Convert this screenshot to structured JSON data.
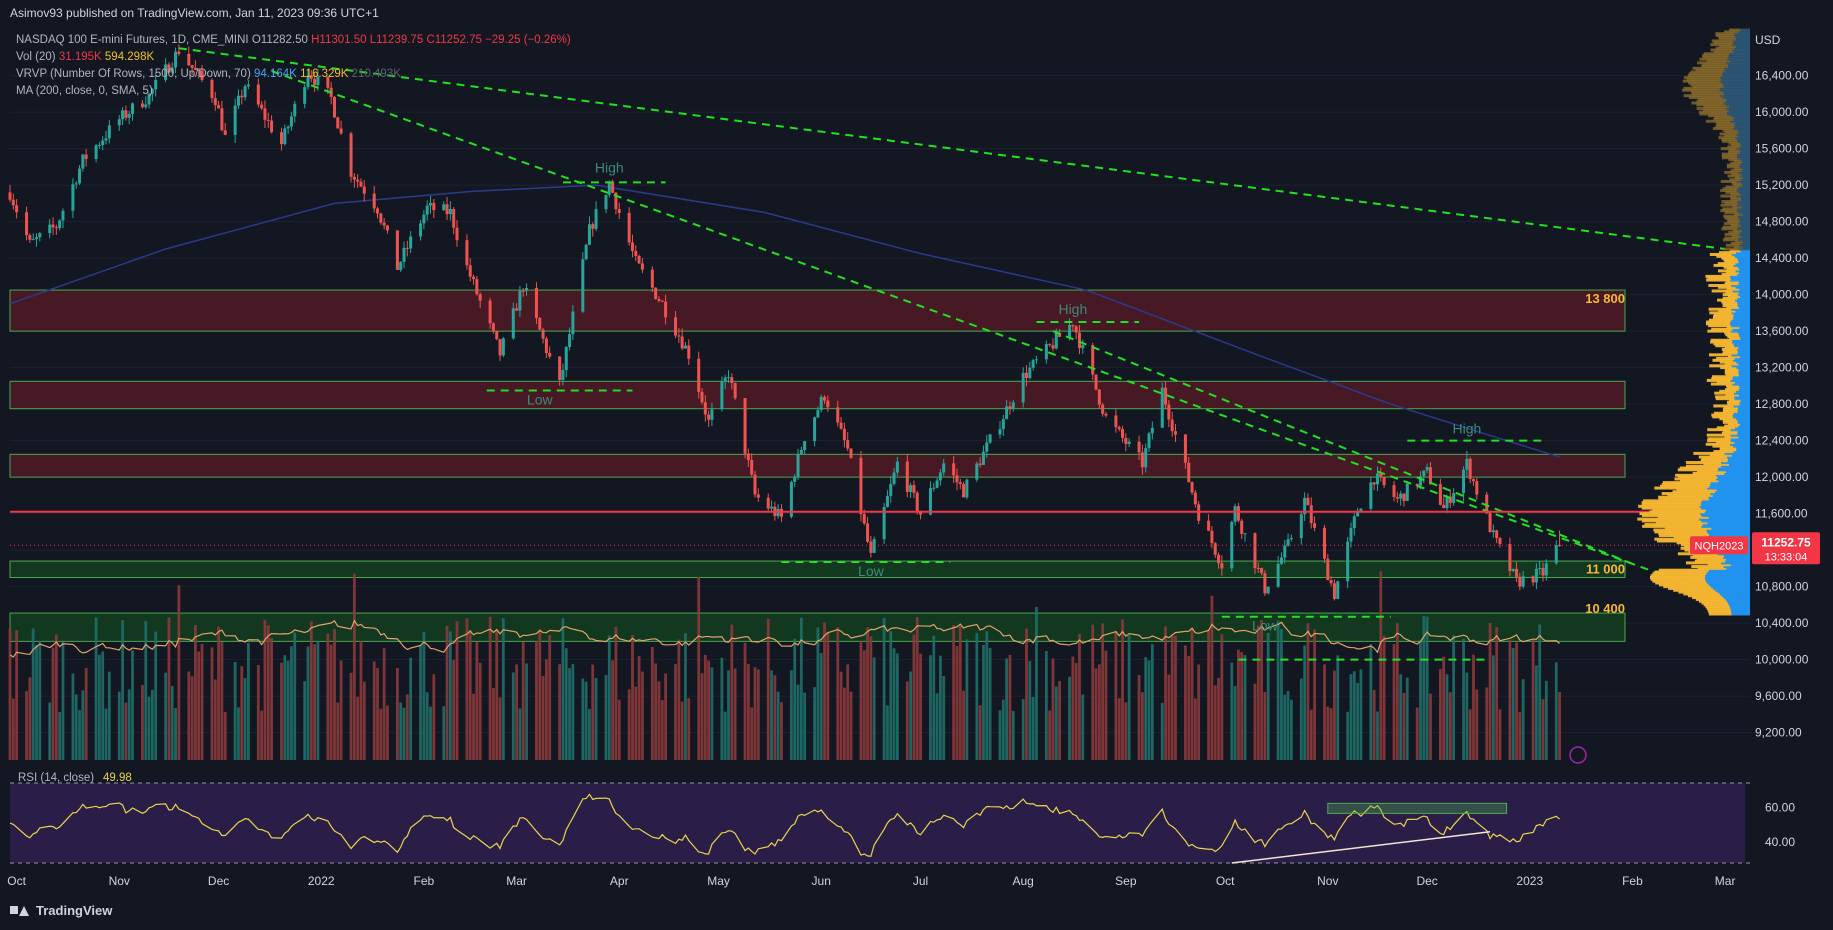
{
  "header": {
    "publish_text": "Asimov93 published on TradingView.com, Jan 11, 2023 09:36 UTC+1"
  },
  "legend": {
    "symbol": "NASDAQ 100 E-mini Futures, 1D, CME_MINI",
    "open": "O11282.50",
    "high": "H11301.50",
    "low": "L11239.75",
    "close": "C11252.75",
    "change": "−29.25 (−0.26%)",
    "vol_label": "Vol (20)",
    "vol_value1": "31.195K",
    "vol_value2": "594.298K",
    "vrvp_label": "VRVP (Number Of Rows, 1500, Up/Down, 70)",
    "vrvp_value1": "94.164K",
    "vrvp_value2": "116.329K",
    "vrvp_value3": "210.493K",
    "ma_label": "MA (200, close, 0, SMA, 5)",
    "rsi_label": "RSI (14, close)",
    "rsi_value": "49.98"
  },
  "footer": {
    "brand": "TradingView"
  },
  "colors": {
    "background": "#131722",
    "bull": "#26a69a",
    "bear": "#ef5350",
    "trendline": "#22e022",
    "ma": "#2a3a8c",
    "resistance_line": "#f23645",
    "zone_red": "#4a1a26",
    "zone_green": "#143a20",
    "zone_border": "#4caf50",
    "rsi_band": "#2a1d47",
    "rsi_line": "#e8d44d",
    "vp_blue": "#2196f3",
    "vp_yellow": "#f7b731"
  },
  "chart_data": {
    "type": "candlestick",
    "currency": "USD",
    "x_ticks": [
      "Oct",
      "Nov",
      "Dec",
      "2022",
      "Feb",
      "Mar",
      "Apr",
      "May",
      "Jun",
      "Jul",
      "Aug",
      "Sep",
      "Oct",
      "Nov",
      "Dec",
      "2023",
      "Feb",
      "Mar"
    ],
    "y_ticks": [
      16400,
      16000,
      15600,
      15200,
      14800,
      14400,
      14000,
      13600,
      13200,
      12800,
      12400,
      12000,
      11600,
      11200,
      10800,
      10400,
      10000,
      9600,
      9200
    ],
    "ylim": [
      8900,
      16900
    ],
    "last_price": "11252.75",
    "last_symbol": "NQH2023",
    "countdown": "13:33:04",
    "rsi_ticks": [
      60,
      40
    ],
    "rsi_value": 49.98,
    "level_labels": [
      {
        "text": "13 800",
        "price": 13800
      },
      {
        "text": "11 000",
        "price": 11000
      },
      {
        "text": "10 400",
        "price": 10400
      }
    ],
    "pivot_labels": [
      {
        "text": "High",
        "date": "2022-03-29",
        "price": 15250
      },
      {
        "text": "Low",
        "date": "2022-03-08",
        "price": 12950
      },
      {
        "text": "High",
        "date": "2022-08-16",
        "price": 13700
      },
      {
        "text": "Low",
        "date": "2022-06-16",
        "price": 11070
      },
      {
        "text": "High",
        "date": "2022-12-13",
        "price": 12390
      },
      {
        "text": "Low",
        "date": "2022-10-13",
        "price": 10470
      }
    ],
    "supply_zones": [
      [
        13600,
        14050
      ],
      [
        12750,
        13050
      ],
      [
        12000,
        12250
      ]
    ],
    "demand_zones": [
      [
        10900,
        11080
      ],
      [
        10200,
        10510
      ]
    ],
    "horizontal_line": 11620,
    "series_anchors": [
      [
        "2021-09-29",
        15120
      ],
      [
        "2021-10-05",
        14550
      ],
      [
        "2021-10-13",
        14750
      ],
      [
        "2021-10-21",
        15470
      ],
      [
        "2021-11-01",
        15920
      ],
      [
        "2021-11-10",
        16180
      ],
      [
        "2021-11-19",
        16680
      ],
      [
        "2021-11-30",
        16150
      ],
      [
        "2021-12-03",
        15720
      ],
      [
        "2021-12-09",
        16300
      ],
      [
        "2021-12-20",
        15650
      ],
      [
        "2021-12-28",
        16450
      ],
      [
        "2022-01-04",
        16150
      ],
      [
        "2022-01-10",
        15350
      ],
      [
        "2022-01-18",
        14950
      ],
      [
        "2022-01-24",
        14300
      ],
      [
        "2022-02-02",
        14950
      ],
      [
        "2022-02-09",
        14900
      ],
      [
        "2022-02-14",
        14300
      ],
      [
        "2022-02-24",
        13350
      ],
      [
        "2022-03-03",
        14100
      ],
      [
        "2022-03-14",
        13000
      ],
      [
        "2022-03-23",
        14700
      ],
      [
        "2022-03-29",
        15230
      ],
      [
        "2022-04-06",
        14350
      ],
      [
        "2022-04-14",
        13900
      ],
      [
        "2022-04-22",
        13350
      ],
      [
        "2022-04-28",
        12600
      ],
      [
        "2022-05-04",
        13150
      ],
      [
        "2022-05-12",
        11800
      ],
      [
        "2022-05-20",
        11550
      ],
      [
        "2022-05-27",
        12450
      ],
      [
        "2022-06-02",
        12900
      ],
      [
        "2022-06-09",
        12300
      ],
      [
        "2022-06-16",
        11120
      ],
      [
        "2022-06-24",
        12150
      ],
      [
        "2022-07-01",
        11600
      ],
      [
        "2022-07-08",
        12150
      ],
      [
        "2022-07-14",
        11850
      ],
      [
        "2022-07-25",
        12600
      ],
      [
        "2022-08-01",
        13100
      ],
      [
        "2022-08-16",
        13700
      ],
      [
        "2022-08-26",
        12650
      ],
      [
        "2022-09-06",
        12150
      ],
      [
        "2022-09-12",
        12950
      ],
      [
        "2022-09-23",
        11600
      ],
      [
        "2022-09-30",
        11050
      ],
      [
        "2022-10-04",
        11650
      ],
      [
        "2022-10-13",
        10780
      ],
      [
        "2022-10-20",
        11250
      ],
      [
        "2022-10-25",
        11750
      ],
      [
        "2022-11-03",
        10720
      ],
      [
        "2022-11-10",
        11650
      ],
      [
        "2022-11-15",
        12000
      ],
      [
        "2022-11-22",
        11750
      ],
      [
        "2022-12-01",
        12050
      ],
      [
        "2022-12-06",
        11650
      ],
      [
        "2022-12-13",
        12150
      ],
      [
        "2022-12-21",
        11350
      ],
      [
        "2022-12-28",
        10850
      ],
      [
        "2023-01-05",
        10950
      ],
      [
        "2023-01-10",
        11290
      ]
    ],
    "ma200_anchors": [
      [
        "2021-09-29",
        13900
      ],
      [
        "2021-11-15",
        14500
      ],
      [
        "2022-01-05",
        15000
      ],
      [
        "2022-02-15",
        15130
      ],
      [
        "2022-03-25",
        15200
      ],
      [
        "2022-05-15",
        14900
      ],
      [
        "2022-07-01",
        14450
      ],
      [
        "2022-08-20",
        14050
      ],
      [
        "2022-10-10",
        13350
      ],
      [
        "2022-11-20",
        12800
      ],
      [
        "2022-12-25",
        12400
      ],
      [
        "2023-01-10",
        12220
      ]
    ]
  }
}
